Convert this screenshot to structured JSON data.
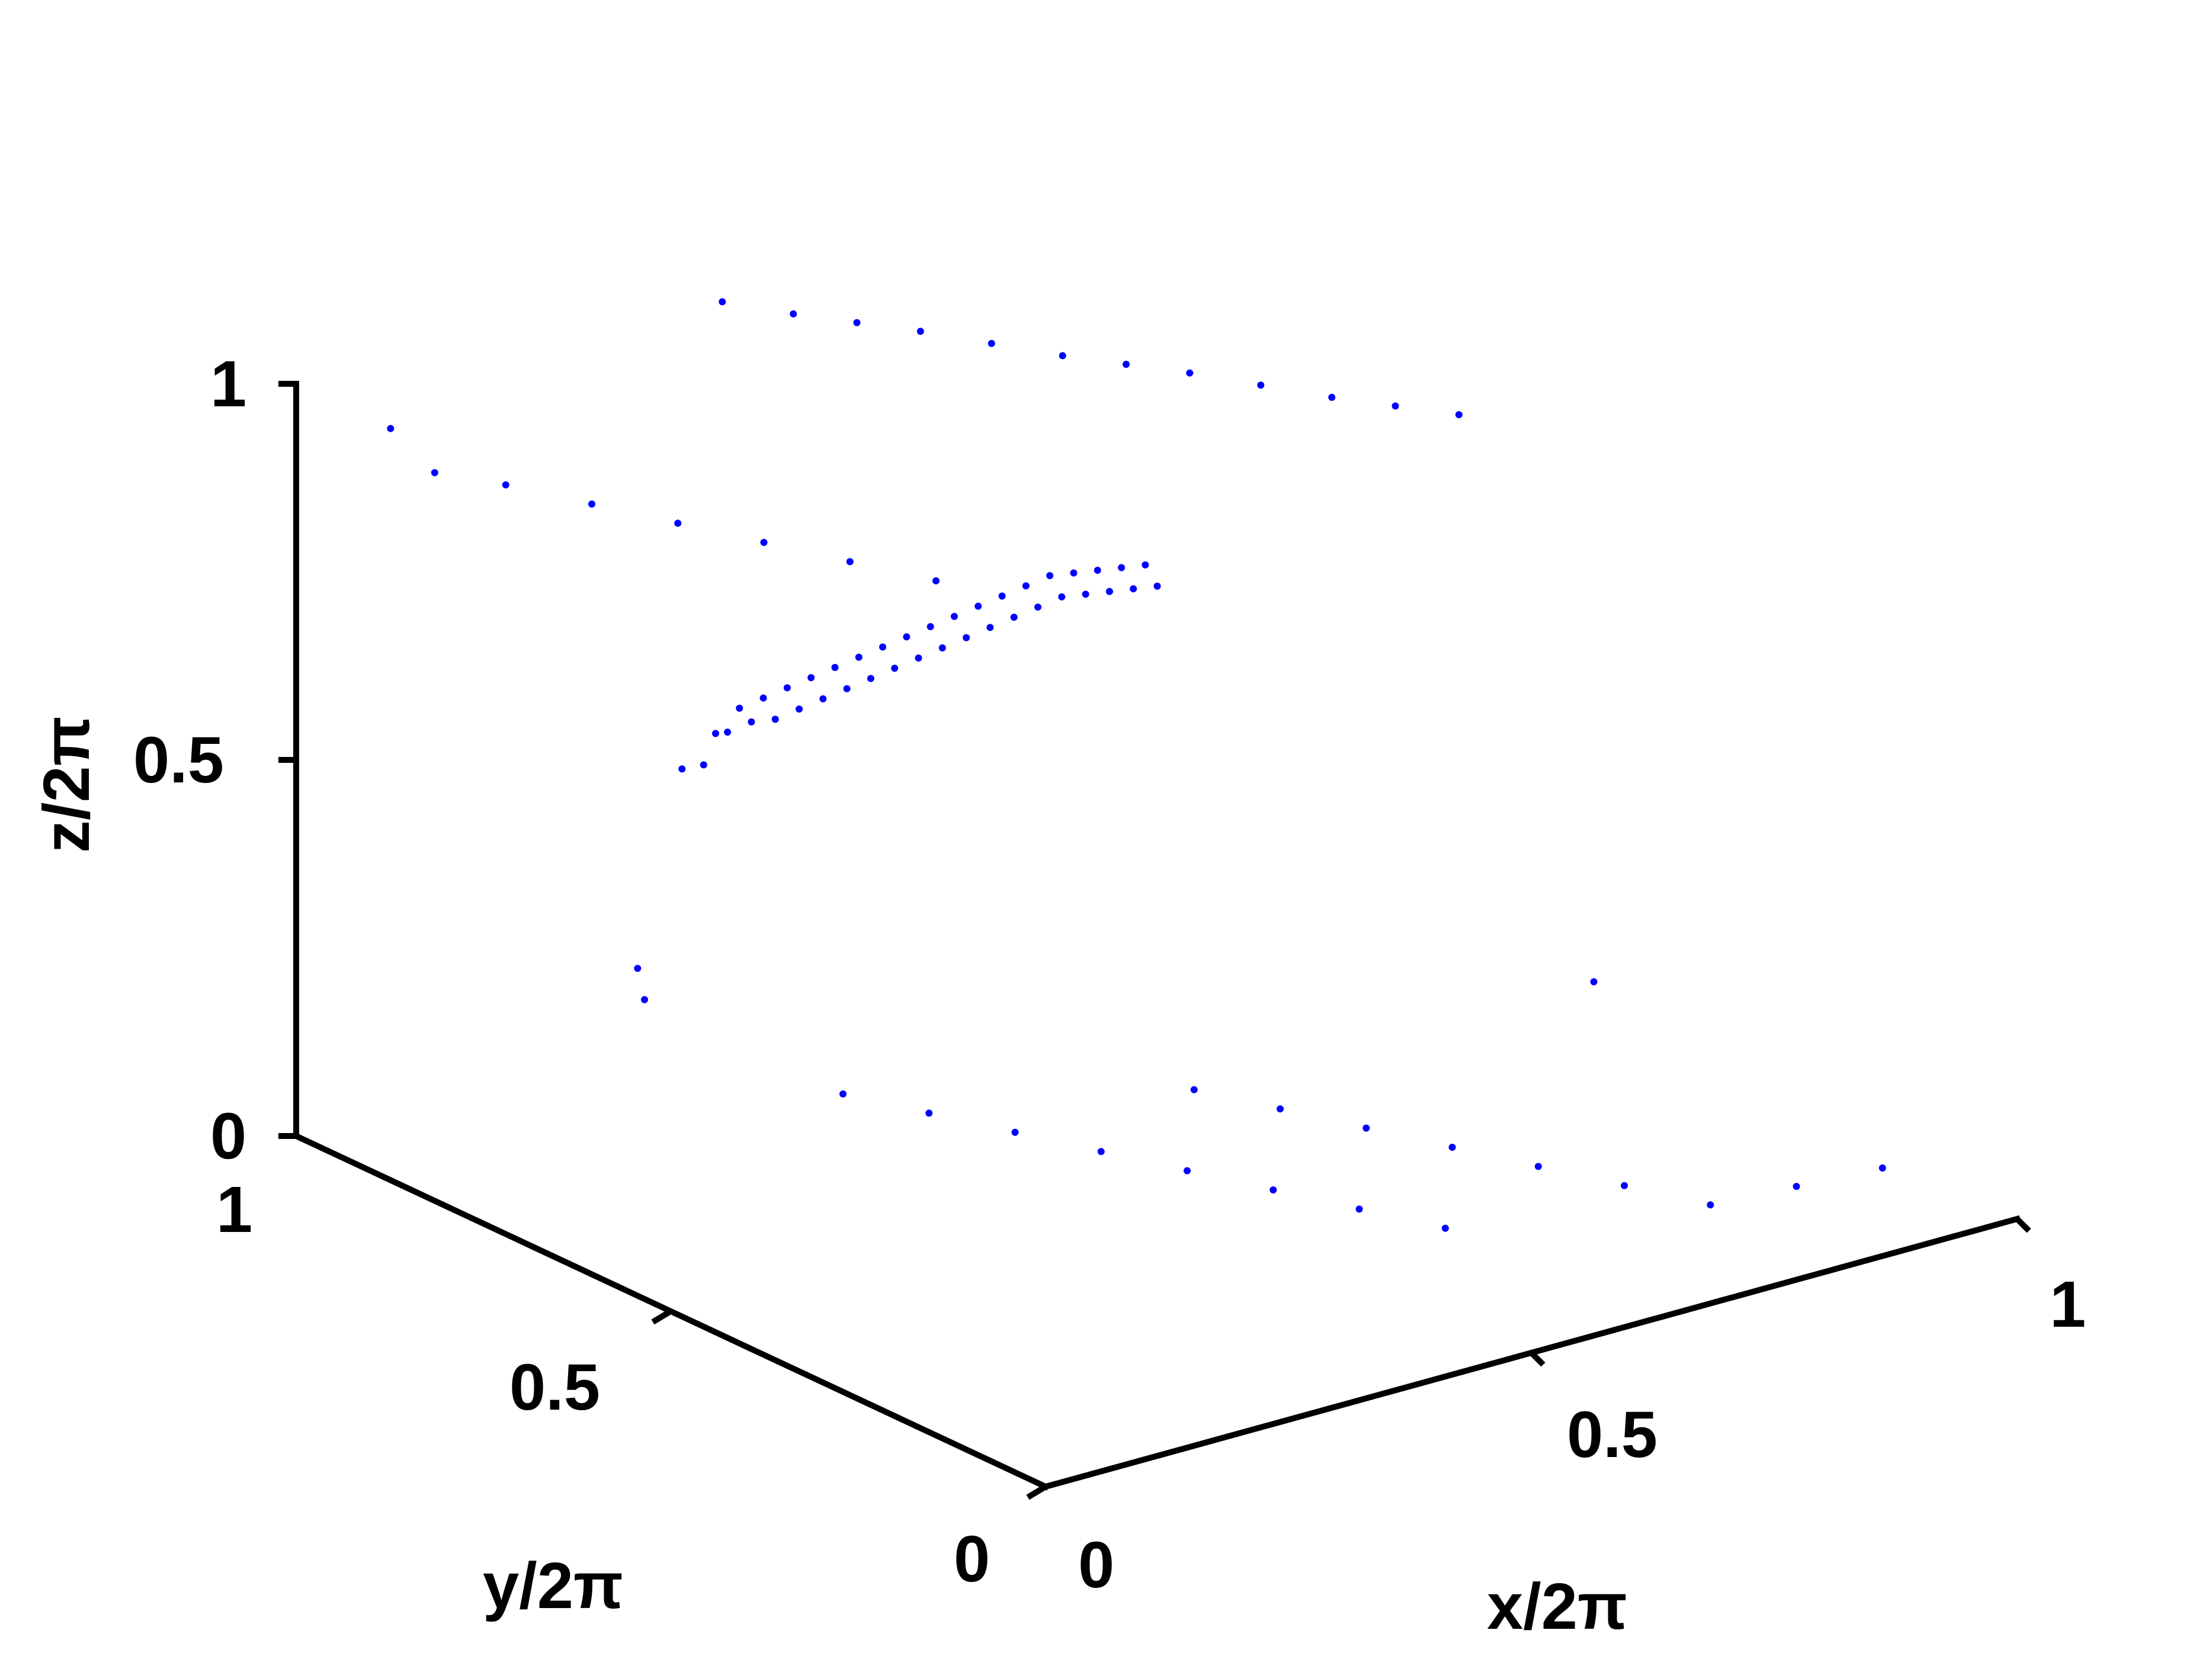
{
  "chart_data": {
    "type": "scatter",
    "projection": "3d",
    "title": "",
    "xlabel": "x/2π",
    "ylabel": "y/2π",
    "zlabel": "z/2π",
    "xlim": [
      0,
      1
    ],
    "ylim": [
      0,
      1
    ],
    "zlim": [
      0,
      1
    ],
    "x_ticks": [
      "0",
      "0.5",
      "1"
    ],
    "y_ticks": [
      "0",
      "0.5",
      "1"
    ],
    "z_ticks": [
      "0",
      "0.5",
      "1"
    ],
    "grid": false,
    "marker_color": "#0000ff",
    "series": [
      {
        "description_of_distribution": null,
        "points_dense_band": [
          [
            0.05,
            0.55,
            0.68
          ],
          [
            0.08,
            0.56,
            0.67
          ],
          [
            0.1,
            0.57,
            0.7
          ],
          [
            0.12,
            0.58,
            0.69
          ],
          [
            0.14,
            0.59,
            0.71
          ],
          [
            0.16,
            0.6,
            0.68
          ],
          [
            0.18,
            0.61,
            0.7
          ],
          [
            0.2,
            0.62,
            0.66
          ],
          [
            0.22,
            0.63,
            0.69
          ],
          [
            0.24,
            0.64,
            0.65
          ],
          [
            0.26,
            0.65,
            0.68
          ],
          [
            0.28,
            0.66,
            0.64
          ],
          [
            0.3,
            0.67,
            0.67
          ],
          [
            0.32,
            0.68,
            0.63
          ],
          [
            0.34,
            0.69,
            0.66
          ],
          [
            0.36,
            0.7,
            0.62
          ],
          [
            0.38,
            0.71,
            0.65
          ],
          [
            0.4,
            0.72,
            0.61
          ],
          [
            0.42,
            0.73,
            0.64
          ],
          [
            0.44,
            0.74,
            0.6
          ],
          [
            0.46,
            0.75,
            0.63
          ],
          [
            0.48,
            0.76,
            0.59
          ],
          [
            0.5,
            0.77,
            0.62
          ],
          [
            0.52,
            0.78,
            0.58
          ],
          [
            0.54,
            0.79,
            0.61
          ],
          [
            0.56,
            0.8,
            0.57
          ],
          [
            0.58,
            0.81,
            0.6
          ],
          [
            0.6,
            0.82,
            0.56
          ],
          [
            0.62,
            0.83,
            0.59
          ],
          [
            0.64,
            0.84,
            0.55
          ],
          [
            0.66,
            0.85,
            0.58
          ],
          [
            0.68,
            0.86,
            0.54
          ],
          [
            0.7,
            0.87,
            0.56
          ],
          [
            0.72,
            0.88,
            0.52
          ],
          [
            0.74,
            0.89,
            0.54
          ],
          [
            0.76,
            0.9,
            0.5
          ],
          [
            0.78,
            0.91,
            0.52
          ],
          [
            0.8,
            0.92,
            0.48
          ],
          [
            0.82,
            0.93,
            0.5
          ],
          [
            0.84,
            0.94,
            0.46
          ]
        ],
        "points_scattered": [
          [
            0.02,
            0.9,
            0.98
          ],
          [
            0.05,
            0.88,
            0.92
          ],
          [
            0.1,
            0.85,
            0.9
          ],
          [
            0.15,
            0.8,
            0.88
          ],
          [
            0.2,
            0.75,
            0.86
          ],
          [
            0.25,
            0.7,
            0.84
          ],
          [
            0.3,
            0.65,
            0.82
          ],
          [
            0.35,
            0.6,
            0.8
          ],
          [
            0.4,
            0.95,
            0.99
          ],
          [
            0.45,
            0.92,
            0.97
          ],
          [
            0.5,
            0.9,
            0.95
          ],
          [
            0.55,
            0.88,
            0.93
          ],
          [
            0.6,
            0.85,
            0.91
          ],
          [
            0.65,
            0.82,
            0.89
          ],
          [
            0.7,
            0.8,
            0.87
          ],
          [
            0.75,
            0.78,
            0.85
          ],
          [
            0.8,
            0.75,
            0.83
          ],
          [
            0.85,
            0.72,
            0.81
          ],
          [
            0.9,
            0.7,
            0.79
          ],
          [
            0.95,
            0.68,
            0.77
          ],
          [
            0.1,
            0.4,
            0.3
          ],
          [
            0.15,
            0.35,
            0.28
          ],
          [
            0.2,
            0.3,
            0.26
          ],
          [
            0.25,
            0.25,
            0.24
          ],
          [
            0.3,
            0.2,
            0.22
          ],
          [
            0.35,
            0.15,
            0.2
          ],
          [
            0.4,
            0.1,
            0.18
          ],
          [
            0.45,
            0.05,
            0.16
          ],
          [
            0.5,
            0.45,
            0.14
          ],
          [
            0.55,
            0.4,
            0.12
          ],
          [
            0.6,
            0.35,
            0.1
          ],
          [
            0.65,
            0.3,
            0.08
          ],
          [
            0.7,
            0.25,
            0.06
          ],
          [
            0.75,
            0.2,
            0.04
          ],
          [
            0.8,
            0.15,
            0.02
          ],
          [
            0.85,
            0.1,
            0.05
          ],
          [
            0.9,
            0.05,
            0.08
          ],
          [
            0.95,
            0.5,
            0.1
          ],
          [
            0.05,
            0.6,
            0.35
          ],
          [
            0.12,
            0.7,
            0.32
          ]
        ]
      }
    ]
  }
}
